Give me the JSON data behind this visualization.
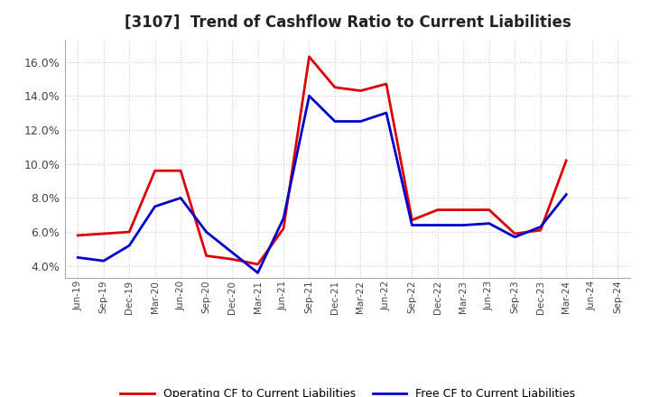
{
  "title": "[3107]  Trend of Cashflow Ratio to Current Liabilities",
  "x_labels": [
    "Jun-19",
    "Sep-19",
    "Dec-19",
    "Mar-20",
    "Jun-20",
    "Sep-20",
    "Dec-20",
    "Mar-21",
    "Jun-21",
    "Sep-21",
    "Dec-21",
    "Mar-22",
    "Jun-22",
    "Sep-22",
    "Dec-22",
    "Mar-23",
    "Jun-23",
    "Sep-23",
    "Dec-23",
    "Mar-24",
    "Jun-24",
    "Sep-24"
  ],
  "operating_cf": [
    0.058,
    0.059,
    0.06,
    0.096,
    0.096,
    0.046,
    0.044,
    0.041,
    0.062,
    0.163,
    0.145,
    0.143,
    0.147,
    0.067,
    0.073,
    0.073,
    0.073,
    0.059,
    0.061,
    0.102,
    null,
    null
  ],
  "free_cf": [
    0.045,
    0.043,
    0.052,
    0.075,
    0.08,
    0.06,
    0.048,
    0.036,
    0.068,
    0.14,
    0.125,
    0.125,
    0.13,
    0.064,
    0.064,
    0.064,
    0.065,
    0.057,
    0.063,
    0.082,
    null,
    null
  ],
  "operating_color": "#dd0000",
  "free_color": "#0000cc",
  "ylim": [
    0.033,
    0.173
  ],
  "yticks": [
    0.04,
    0.06,
    0.08,
    0.1,
    0.12,
    0.14,
    0.16
  ],
  "legend_operating": "Operating CF to Current Liabilities",
  "legend_free": "Free CF to Current Liabilities",
  "background_color": "#ffffff",
  "grid_color": "#cccccc"
}
